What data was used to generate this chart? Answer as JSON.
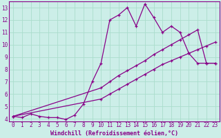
{
  "xlabel": "Windchill (Refroidissement éolien,°C)",
  "bg_color": "#cceee8",
  "grid_color": "#aaddcc",
  "line_color": "#880088",
  "xlim": [
    -0.5,
    23.5
  ],
  "ylim": [
    3.8,
    13.5
  ],
  "xticks": [
    0,
    1,
    2,
    3,
    4,
    5,
    6,
    7,
    8,
    9,
    10,
    11,
    12,
    13,
    14,
    15,
    16,
    17,
    18,
    19,
    20,
    21,
    22,
    23
  ],
  "yticks": [
    4,
    5,
    6,
    7,
    8,
    9,
    10,
    11,
    12,
    13
  ],
  "line1_x": [
    0,
    1,
    2,
    3,
    4,
    5,
    6,
    7,
    8,
    9,
    10,
    11,
    12,
    13,
    14,
    15,
    16,
    17,
    18,
    19,
    20,
    21,
    22,
    23
  ],
  "line1_y": [
    4.2,
    4.1,
    4.4,
    4.2,
    4.1,
    4.1,
    3.95,
    4.3,
    5.2,
    7.0,
    8.5,
    12.0,
    12.4,
    13.0,
    11.5,
    13.3,
    12.2,
    11.0,
    11.5,
    11.0,
    9.3,
    8.5,
    8.5,
    8.5
  ],
  "line2_x": [
    0,
    10,
    11,
    12,
    13,
    14,
    15,
    16,
    17,
    18,
    19,
    20,
    21,
    22,
    23
  ],
  "line2_y": [
    4.2,
    5.6,
    6.0,
    6.4,
    6.8,
    7.2,
    7.6,
    8.0,
    8.4,
    8.7,
    9.0,
    9.3,
    9.6,
    9.9,
    10.2
  ],
  "line3_x": [
    0,
    10,
    11,
    12,
    13,
    14,
    15,
    16,
    17,
    18,
    19,
    20,
    21,
    22,
    23
  ],
  "line3_y": [
    4.2,
    6.5,
    7.0,
    7.5,
    7.9,
    8.3,
    8.7,
    9.2,
    9.6,
    10.0,
    10.4,
    10.8,
    11.2,
    8.5,
    8.5
  ],
  "font_family": "monospace",
  "tick_fontsize": 5.5,
  "xlabel_fontsize": 6.0
}
